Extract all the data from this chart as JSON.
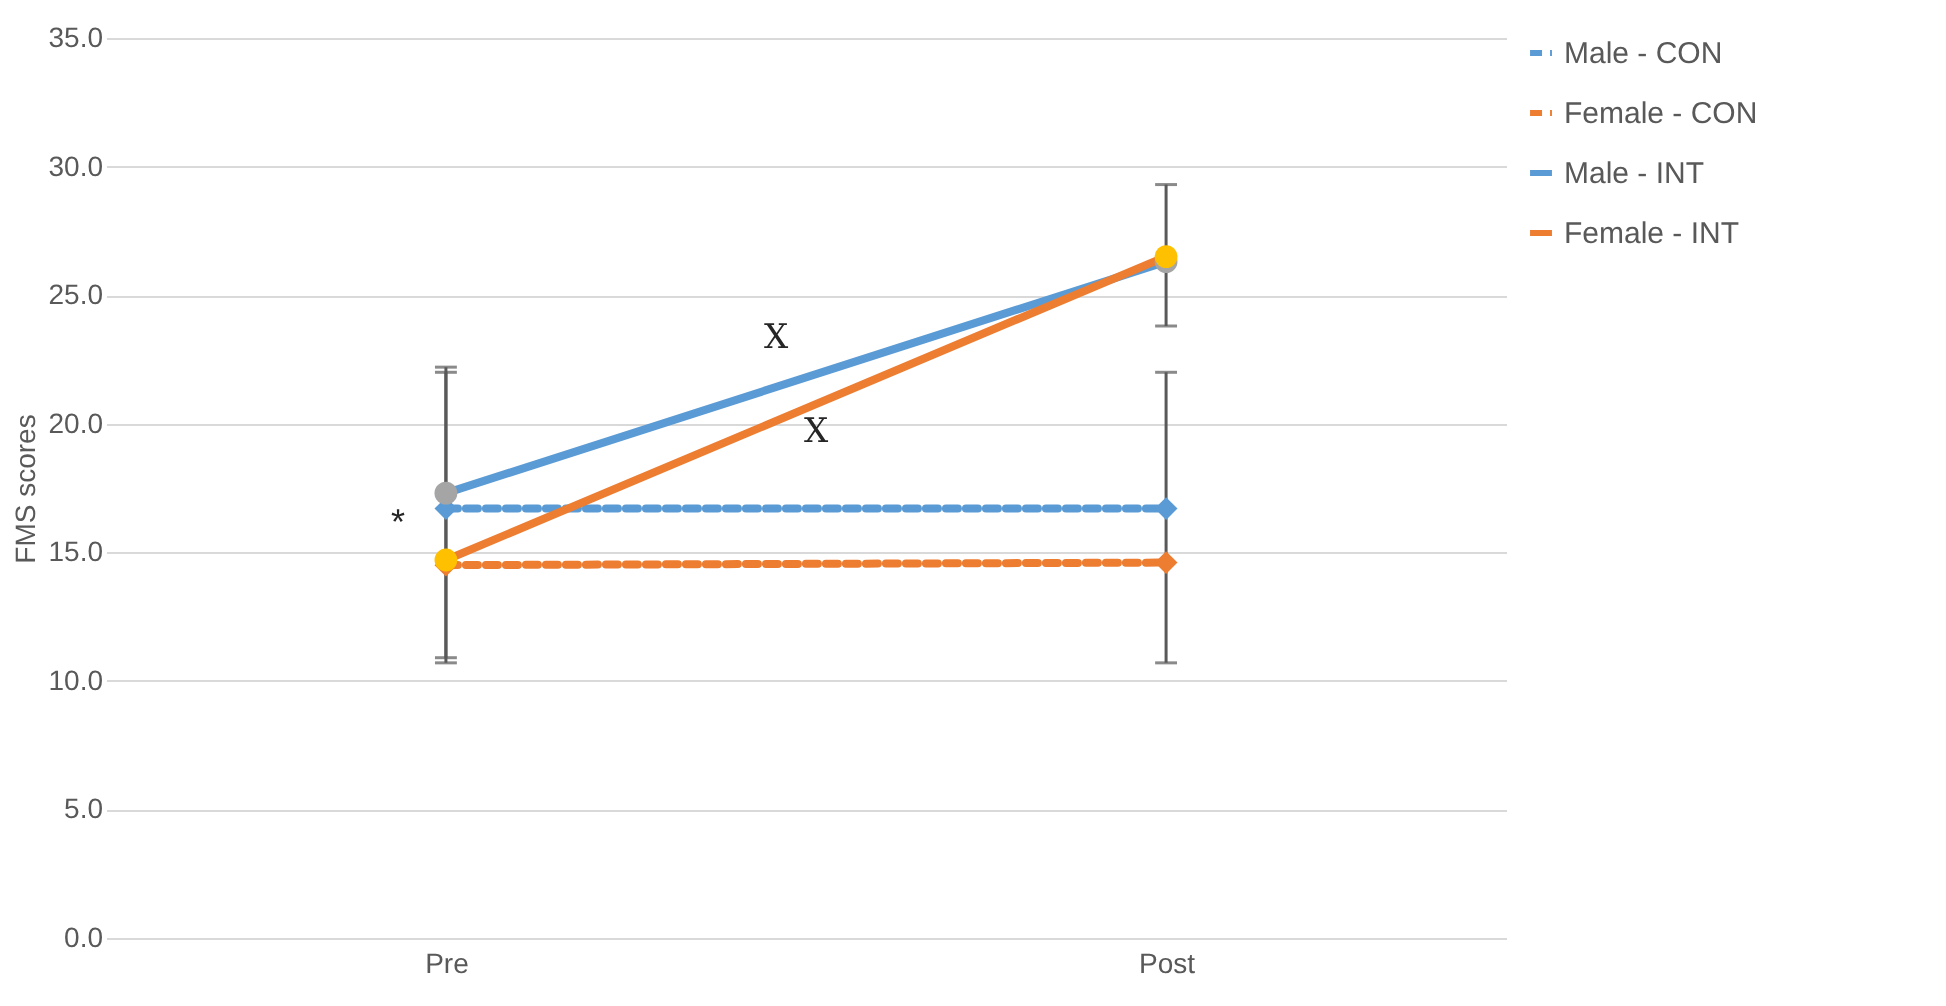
{
  "chart_data": {
    "type": "line",
    "ylabel": "FMS scores",
    "categories": [
      "Pre",
      "Post"
    ],
    "ylim": [
      0,
      35
    ],
    "yticks": [
      {
        "value": 0,
        "label": "0.0"
      },
      {
        "value": 5,
        "label": "5.0"
      },
      {
        "value": 10,
        "label": "10.0"
      },
      {
        "value": 15,
        "label": "15.0"
      },
      {
        "value": 20,
        "label": "20.0"
      },
      {
        "value": 25,
        "label": "25.0"
      },
      {
        "value": 30,
        "label": "30.0"
      },
      {
        "value": 35,
        "label": "35.0"
      }
    ],
    "grid": "y",
    "legend": "right",
    "series": [
      {
        "name": "Male - CON",
        "color": "#5b9bd5",
        "colors": [
          "#5b9bd5",
          "#5b9bd5"
        ],
        "marker": "diamond",
        "line_style": "dashed",
        "values": [
          16.7,
          16.7
        ],
        "errors": [
          [
            10.9,
            22.0
          ],
          [
            10.7,
            22.0
          ]
        ]
      },
      {
        "name": "Female - CON",
        "color": "#ed7d31",
        "colors": [
          "#ed7d31",
          "#ed7d31"
        ],
        "marker": "diamond",
        "line_style": "dashed",
        "values": [
          14.5,
          14.6
        ]
      },
      {
        "name": "Male - INT",
        "color": "#5b9bd5",
        "colors": [
          "#a5a5a5",
          "#a5a5a5"
        ],
        "marker": "circle",
        "line_style": "solid",
        "values": [
          17.3,
          26.3
        ],
        "errors": [
          [
            10.7,
            22.2
          ],
          [
            23.8,
            29.3
          ]
        ]
      },
      {
        "name": "Female - INT",
        "color": "#ed7d31",
        "colors": [
          "#ffc000",
          "#ffc000"
        ],
        "marker": "circle",
        "line_style": "solid",
        "values": [
          14.7,
          26.5
        ]
      }
    ],
    "annotations": [
      {
        "text": "*",
        "x": "Pre",
        "y": 16.1
      },
      "Χ",
      "Χ"
    ]
  }
}
